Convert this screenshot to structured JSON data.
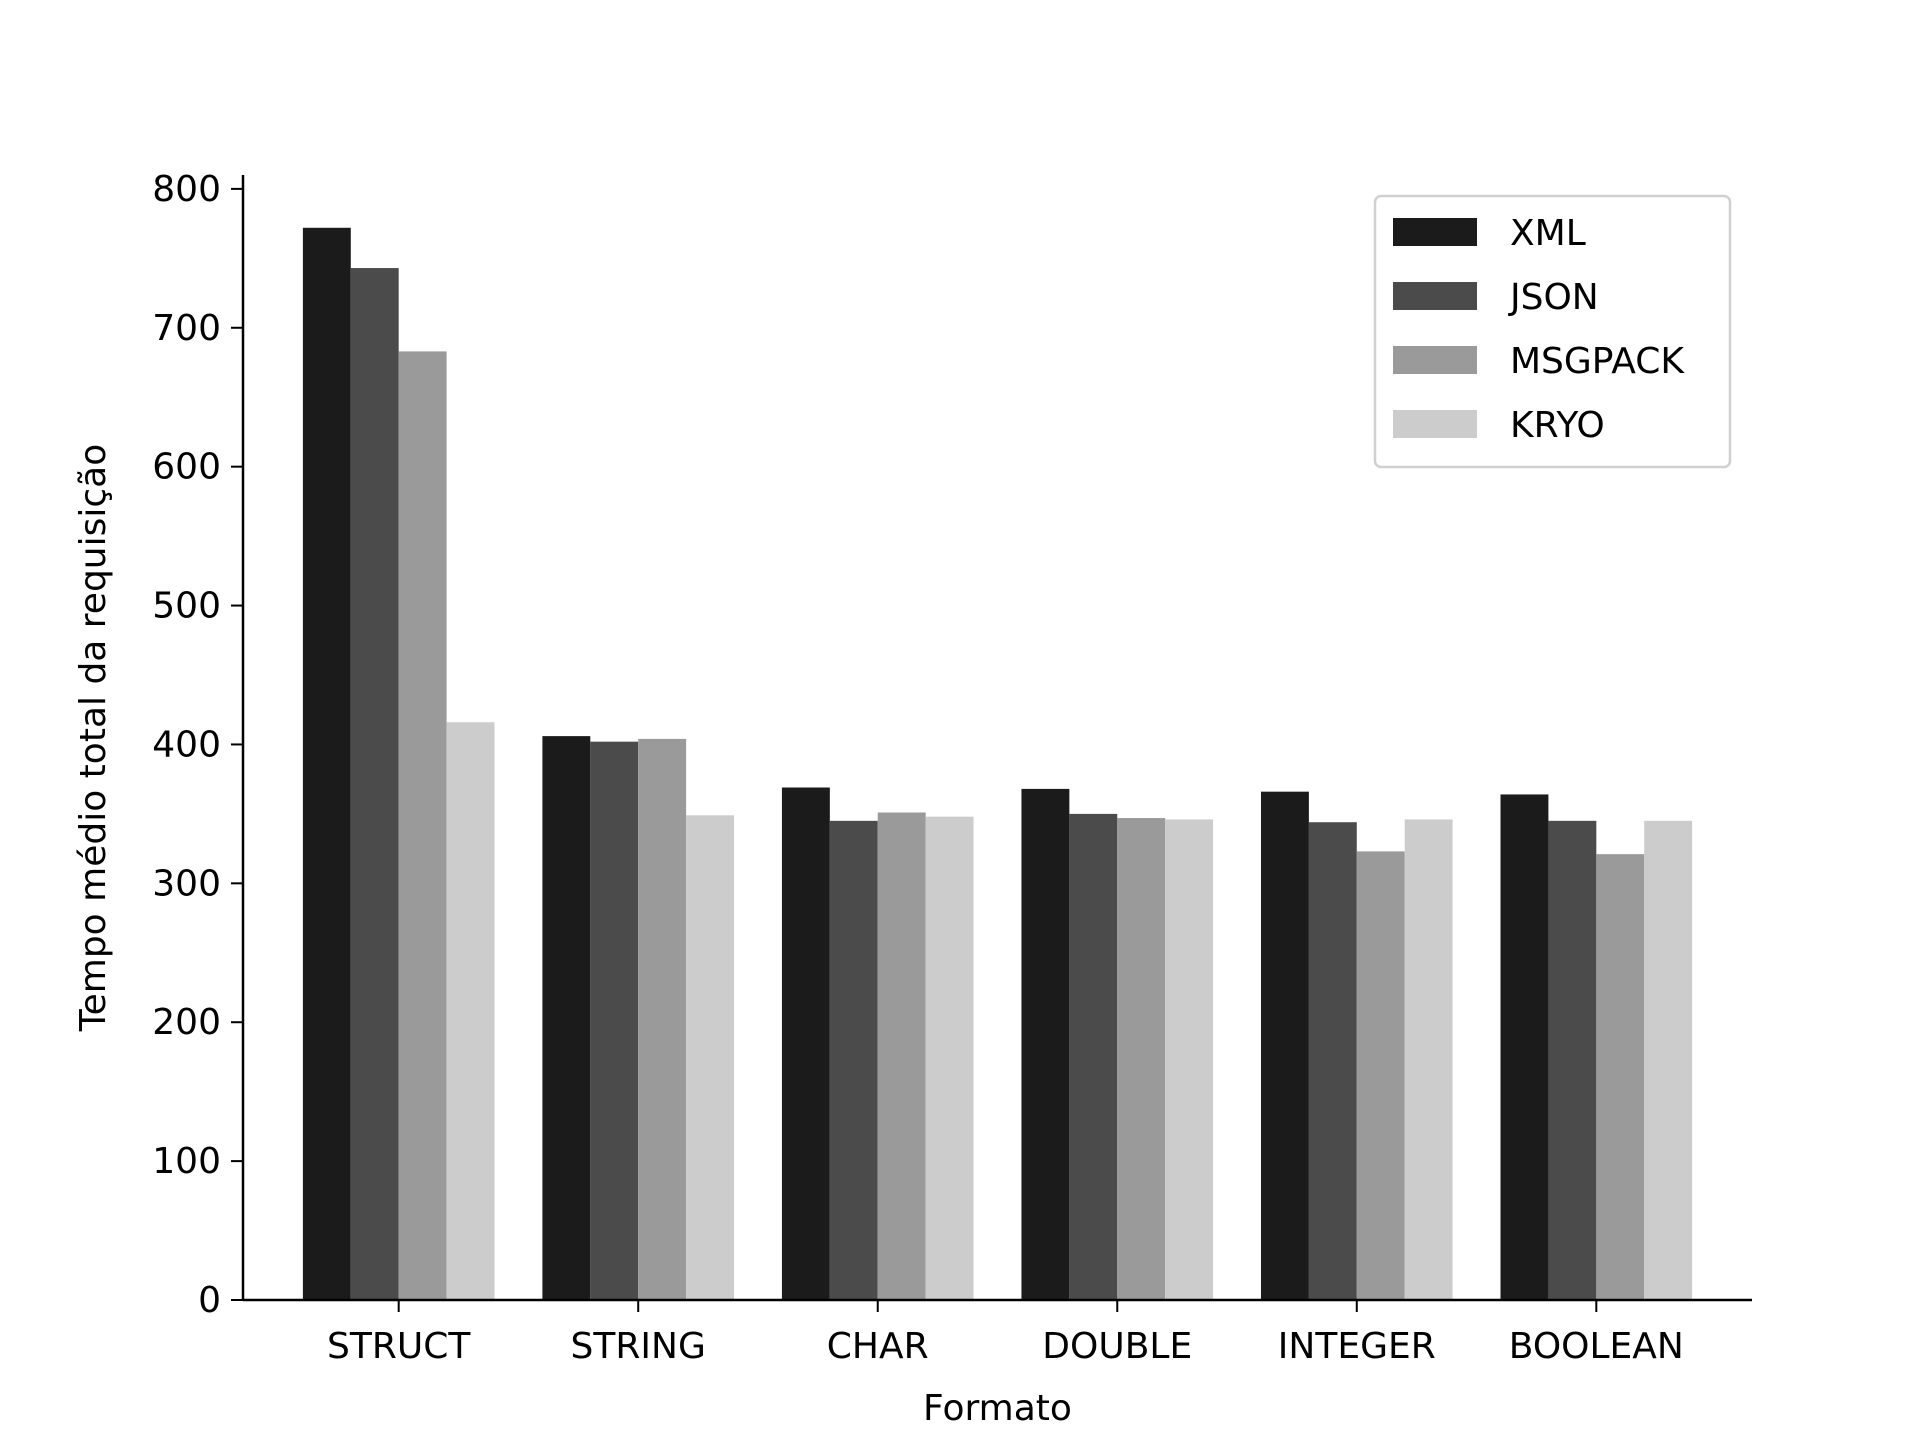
{
  "chart_data": {
    "type": "bar",
    "xlabel": "Formato",
    "ylabel": "Tempo médio total da requisição",
    "categories": [
      "STRUCT",
      "STRING",
      "CHAR",
      "DOUBLE",
      "INTEGER",
      "BOOLEAN"
    ],
    "series": [
      {
        "name": "XML",
        "color": "#1b1b1b",
        "values": [
          772,
          406,
          369,
          368,
          366,
          364
        ]
      },
      {
        "name": "JSON",
        "color": "#4b4b4b",
        "values": [
          743,
          402,
          345,
          350,
          344,
          345
        ]
      },
      {
        "name": "MSGPACK",
        "color": "#9a9a9a",
        "values": [
          683,
          404,
          351,
          347,
          323,
          321
        ]
      },
      {
        "name": "KRYO",
        "color": "#cccccc",
        "values": [
          416,
          349,
          348,
          346,
          346,
          345
        ]
      }
    ],
    "ylim": [
      0,
      810
    ],
    "yticks": [
      0,
      100,
      200,
      300,
      400,
      500,
      600,
      700,
      800
    ],
    "grid": false,
    "legend": "top-right"
  }
}
